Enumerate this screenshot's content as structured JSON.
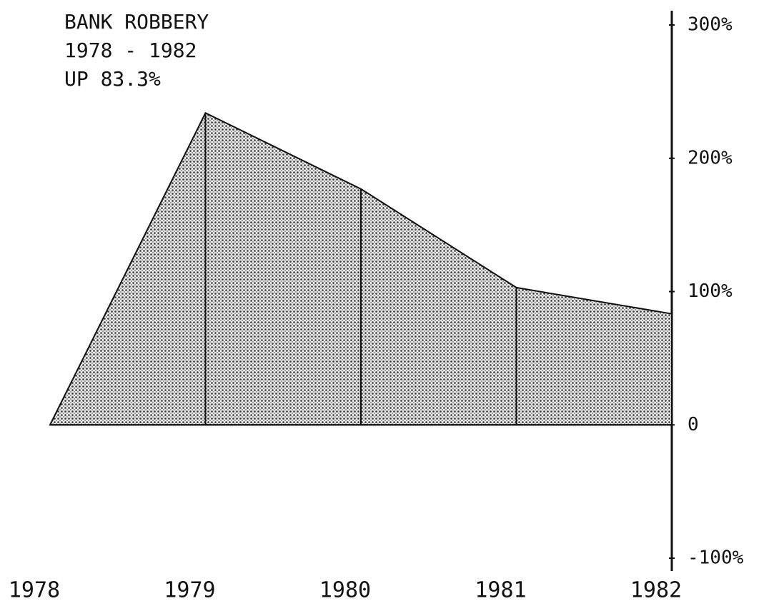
{
  "chart_data": {
    "type": "area",
    "title": [
      "BANK ROBBERY",
      "1978 - 1982",
      "UP 83.3%"
    ],
    "categories": [
      "1978",
      "1979",
      "1980",
      "1981",
      "1982"
    ],
    "values": [
      0,
      234,
      177,
      103,
      83.3
    ],
    "color": "#555555",
    "ylim": [
      -100,
      300
    ],
    "yticks": [
      {
        "value": 300,
        "label": "300%"
      },
      {
        "value": 200,
        "label": "200%"
      },
      {
        "value": 100,
        "label": "100%"
      },
      0,
      {
        "value": -100,
        "label": "-100%"
      }
    ],
    "grid": false
  }
}
